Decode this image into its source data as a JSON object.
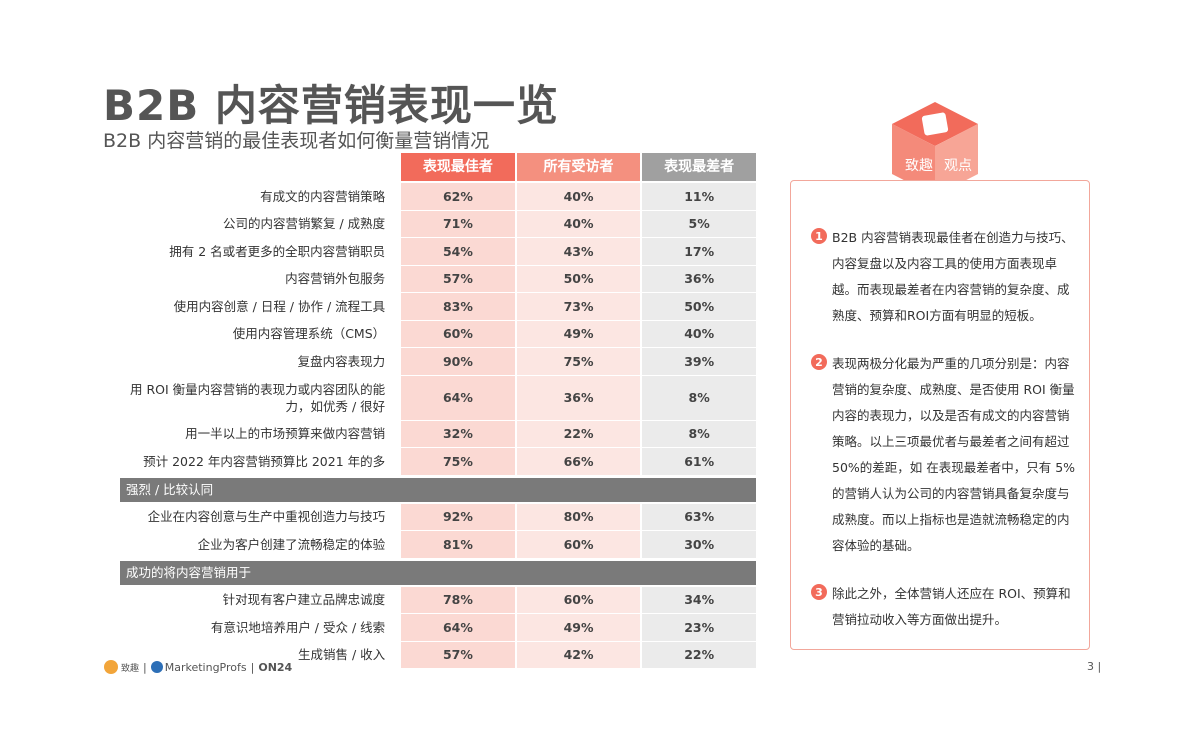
{
  "title": "B2B 内容营销表现一览",
  "subtitle": "B2B 内容营销的最佳表现者如何衡量营销情况",
  "headers": [
    "表现最佳者",
    "所有受访者",
    "表现最差者"
  ],
  "rows1": [
    {
      "label": "有成文的内容营销策略",
      "v": [
        "62%",
        "40%",
        "11%"
      ]
    },
    {
      "label": "公司的内容营销繁复 / 成熟度",
      "v": [
        "71%",
        "40%",
        "5%"
      ]
    },
    {
      "label": "拥有 2 名或者更多的全职内容营销职员",
      "v": [
        "54%",
        "43%",
        "17%"
      ]
    },
    {
      "label": "内容营销外包服务",
      "v": [
        "57%",
        "50%",
        "36%"
      ]
    },
    {
      "label": "使用内容创意 / 日程 / 协作 / 流程工具",
      "v": [
        "83%",
        "73%",
        "50%"
      ]
    },
    {
      "label": "使用内容管理系统（CMS）",
      "v": [
        "60%",
        "49%",
        "40%"
      ]
    },
    {
      "label": "复盘内容表现力",
      "v": [
        "90%",
        "75%",
        "39%"
      ]
    },
    {
      "label": "用 ROI 衡量内容营销的表现力或内容团队的能力，如优秀 / 很好",
      "v": [
        "64%",
        "36%",
        "8%"
      ]
    },
    {
      "label": "用一半以上的市场预算来做内容营销",
      "v": [
        "32%",
        "22%",
        "8%"
      ]
    },
    {
      "label": "预计 2022 年内容营销预算比 2021 年的多",
      "v": [
        "75%",
        "66%",
        "61%"
      ]
    }
  ],
  "section2": "强烈 / 比较认同",
  "rows2": [
    {
      "label": "企业在内容创意与生产中重视创造力与技巧",
      "v": [
        "92%",
        "80%",
        "63%"
      ]
    },
    {
      "label": "企业为客户创建了流畅稳定的体验",
      "v": [
        "81%",
        "60%",
        "30%"
      ]
    }
  ],
  "section3": "成功的将内容营销用于",
  "rows3": [
    {
      "label": "针对现有客户建立品牌忠诚度",
      "v": [
        "78%",
        "60%",
        "34%"
      ]
    },
    {
      "label": "有意识地培养用户 / 受众 / 线索",
      "v": [
        "64%",
        "49%",
        "23%"
      ]
    },
    {
      "label": "生成销售 / 收入",
      "v": [
        "57%",
        "42%",
        "22%"
      ]
    }
  ],
  "cube": {
    "text1": "致趣",
    "text2": "观点"
  },
  "panel": [
    {
      "num": "1",
      "text": "B2B 内容营销表现最佳者在创造力与技巧、内容复盘以及内容工具的使用方面表现卓越。而表现最差者在内容营销的复杂度、成熟度、预算和ROI方面有明显的短板。"
    },
    {
      "num": "2",
      "text": "表现两极分化最为严重的几项分别是：内容营销的复杂度、成熟度、是否使用 ROI 衡量内容的表现力，以及是否有成文的内容营销策略。以上三项最优者与最差者之间有超过50%的差距，如 在表现最差者中，只有 5% 的营销人认为公司的内容营销具备复杂度与成熟度。而以上指标也是造就流畅稳定的内容体验的基础。"
    },
    {
      "num": "3",
      "text": "除此之外，全体营销人还应在 ROI、预算和营销拉动收入等方面做出提升。"
    }
  ],
  "footer": {
    "logo1": "致趣",
    "logo2": "MarketingProfs",
    "logo3": "ON24",
    "page": "3"
  },
  "colors": {
    "accent": "#f26b5b",
    "accent2": "#f4907f",
    "gray": "#a0a0a0"
  }
}
